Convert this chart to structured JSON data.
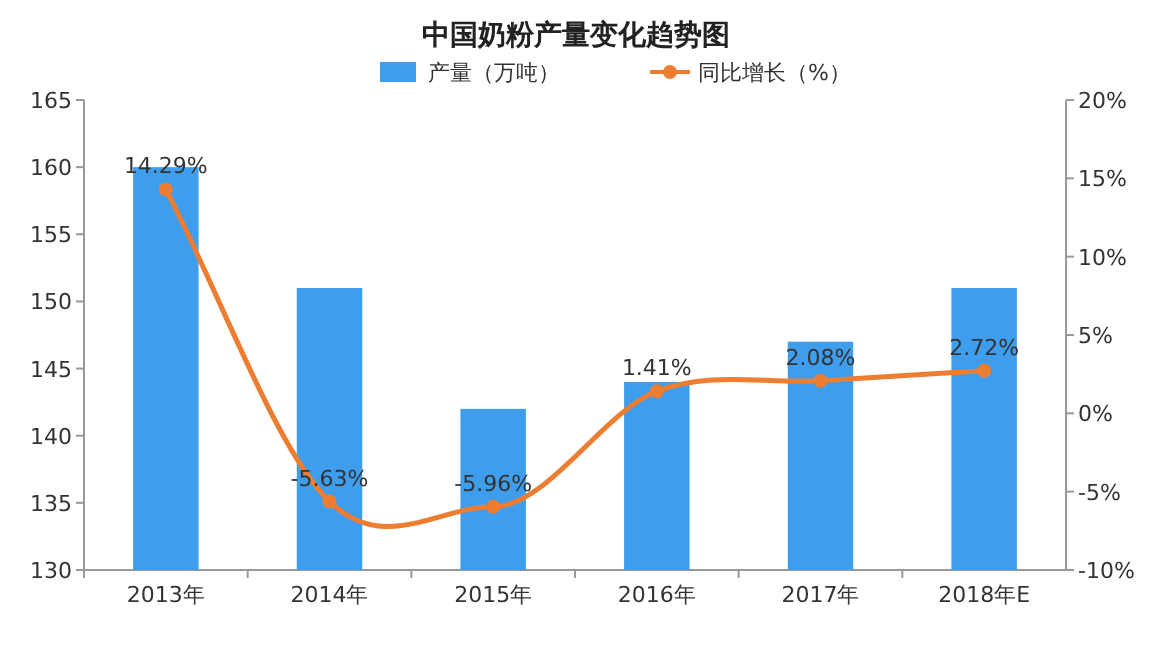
{
  "chart_data": {
    "type": "bar",
    "title": "中国奶粉产量变化趋势图",
    "categories": [
      "2013年",
      "2014年",
      "2015年",
      "2016年",
      "2017年",
      "2018年E"
    ],
    "series": [
      {
        "name": "产量（万吨）",
        "color": "#3f9ded",
        "values": [
          160,
          151,
          142,
          144,
          147,
          151
        ]
      },
      {
        "name": "同比增长（%）",
        "color": "#ed7d31",
        "type": "line",
        "axis": "y2",
        "marker": "circle",
        "values": [
          14.29,
          -5.63,
          -5.96,
          1.41,
          2.08,
          2.72
        ],
        "value_labels": [
          "14.29%",
          "-5.63%",
          "-5.96%",
          "1.41%",
          "2.08%",
          "2.72%"
        ]
      }
    ],
    "ylim": [
      130,
      165
    ],
    "yticks": [
      130,
      135,
      140,
      145,
      150,
      155,
      160,
      165
    ],
    "y2lim": [
      -10,
      20
    ],
    "y2ticks": [
      {
        "value": -10,
        "label": "-10%"
      },
      {
        "value": -5,
        "label": "-5%"
      },
      {
        "value": 0,
        "label": "0%"
      },
      {
        "value": 5,
        "label": "5%"
      },
      {
        "value": 10,
        "label": "10%"
      },
      {
        "value": 15,
        "label": "15%"
      },
      {
        "value": 20,
        "label": "20%"
      }
    ],
    "legend": "top"
  }
}
